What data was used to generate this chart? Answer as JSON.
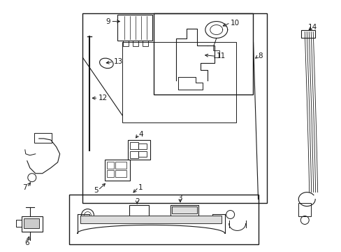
{
  "bg_color": "#ffffff",
  "line_color": "#1a1a1a",
  "fig_width": 4.89,
  "fig_height": 3.6,
  "dpi": 100,
  "font_size": 7.5
}
